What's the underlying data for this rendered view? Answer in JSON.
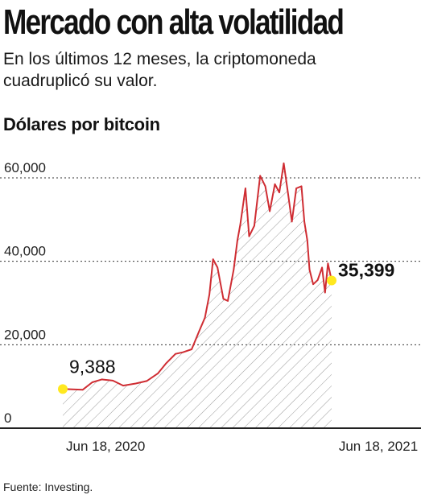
{
  "header": {
    "title": "Mercado con alta volatilidad",
    "subtitle": "En los últimos 12 meses, la criptomoneda cuadruplicó su valor.",
    "y_unit_label": "Dólares por bitcoin"
  },
  "footer": {
    "source": "Fuente: Investing."
  },
  "colors": {
    "line": "#cf2d33",
    "marker": "#ffe81f",
    "grid": "#333333",
    "hatch": "#9a9a9a"
  },
  "chart_data": {
    "type": "area",
    "title": "",
    "xlabel": "",
    "ylabel": "Dólares por bitcoin",
    "ylim": [
      0,
      65000
    ],
    "grid": true,
    "grid_style": "dotted",
    "y_ticks": [
      {
        "value": 0,
        "label": "0"
      },
      {
        "value": 20000,
        "label": "20,000"
      },
      {
        "value": 40000,
        "label": "40,000"
      },
      {
        "value": 60000,
        "label": "60,000"
      }
    ],
    "x_tick_labels": [
      "Jun 18, 2020",
      "Jun 18, 2021"
    ],
    "series": [
      {
        "x": [
          "2020-06-18",
          "2020-07-01",
          "2020-07-15",
          "2020-07-28",
          "2020-08-10",
          "2020-08-25",
          "2020-09-08",
          "2020-09-25",
          "2020-10-10",
          "2020-10-25",
          "2020-11-05",
          "2020-11-18",
          "2020-11-28",
          "2020-12-10",
          "2020-12-20",
          "2020-12-28",
          "2021-01-03",
          "2021-01-08",
          "2021-01-14",
          "2021-01-22",
          "2021-01-28",
          "2021-02-05",
          "2021-02-10",
          "2021-02-14",
          "2021-02-21",
          "2021-02-26",
          "2021-03-05",
          "2021-03-13",
          "2021-03-20",
          "2021-03-26",
          "2021-04-02",
          "2021-04-08",
          "2021-04-14",
          "2021-04-20",
          "2021-04-25",
          "2021-05-01",
          "2021-05-08",
          "2021-05-12",
          "2021-05-16",
          "2021-05-19",
          "2021-05-24",
          "2021-05-30",
          "2021-06-05",
          "2021-06-09",
          "2021-06-13",
          "2021-06-18"
        ],
        "values": [
          9388,
          9300,
          9200,
          11000,
          11700,
          11400,
          10200,
          10700,
          11300,
          13100,
          15500,
          17800,
          18200,
          18900,
          23200,
          26500,
          32000,
          40500,
          38500,
          31000,
          30500,
          38000,
          45000,
          48800,
          57500,
          46000,
          48500,
          60500,
          58000,
          52000,
          58500,
          56500,
          63500,
          56000,
          49500,
          57500,
          58000,
          49500,
          45000,
          38000,
          34500,
          35500,
          38500,
          32500,
          39500,
          35399
        ]
      }
    ],
    "annotations": [
      {
        "x": "2020-06-18",
        "value": 9388,
        "label": "9,388"
      },
      {
        "x": "2021-06-18",
        "value": 35399,
        "label": "35,399"
      }
    ]
  }
}
